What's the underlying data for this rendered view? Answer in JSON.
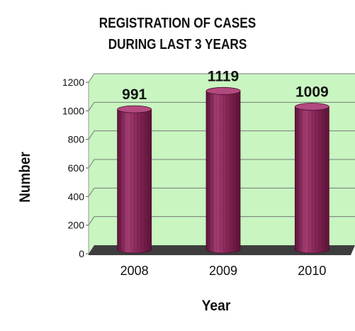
{
  "chart_data": {
    "type": "bar",
    "title": "REGISTRATION OF CASES",
    "subtitle": "DURING LAST 3 YEARS",
    "xlabel": "Year",
    "ylabel": "Number",
    "categories": [
      "2008",
      "2009",
      "2010"
    ],
    "values": [
      991,
      1119,
      1009
    ],
    "value_labels": [
      "991",
      "1119",
      "1009"
    ],
    "ylim": [
      0,
      1200
    ],
    "yticks": [
      0,
      200,
      400,
      600,
      800,
      1000,
      1200
    ],
    "ytick_labels": [
      "0",
      "200",
      "400",
      "600",
      "800",
      "1000",
      "1200"
    ],
    "grid": true,
    "legend": "none",
    "style": "3d-cylinder",
    "colors": {
      "bar": "#8b2a5c",
      "bar_light": "#b24a80",
      "bar_dark": "#5e1238",
      "plot_background": "#c8f5c0",
      "floor": "#3d3d3d",
      "gridline": "#7a7a7a"
    }
  }
}
